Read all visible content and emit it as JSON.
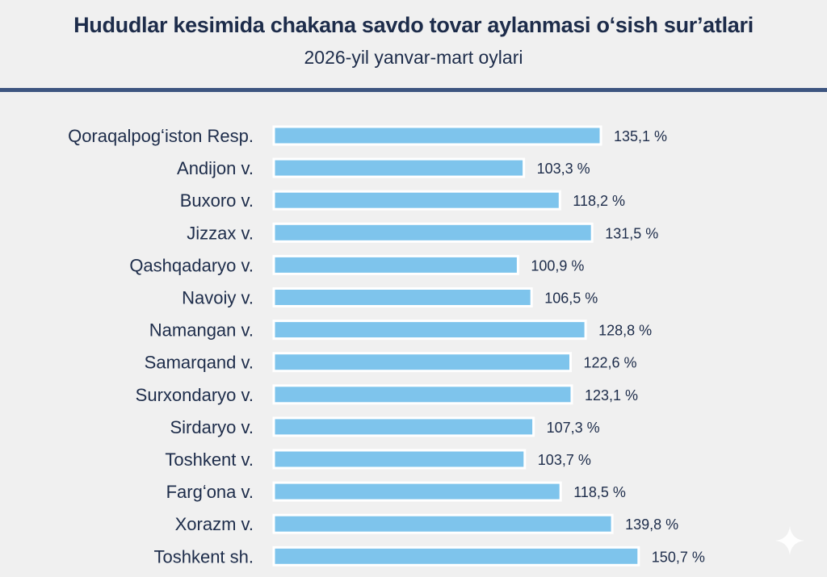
{
  "header": {
    "title": "Hududlar kesimida chakana savdo tovar aylanmasi oʻsish surʼatlari",
    "subtitle": "2026-yil yanvar-mart oylari"
  },
  "chart_data": {
    "type": "bar",
    "orientation": "horizontal",
    "title": "Hududlar kesimida chakana savdo tovar aylanmasi oʻsish surʼatlari",
    "subtitle": "2026-yil yanvar-mart oylari",
    "categories": [
      "Qoraqalpogʻiston Resp.",
      "Andijon v.",
      "Buxoro v.",
      "Jizzax v.",
      "Qashqadaryo v.",
      "Navoiy v.",
      "Namangan v.",
      "Samarqand v.",
      "Surxondaryo v.",
      "Sirdaryo v.",
      "Toshkent v.",
      "Fargʻona v.",
      "Xorazm v.",
      "Toshkent sh."
    ],
    "values": [
      135.1,
      103.3,
      118.2,
      131.5,
      100.9,
      106.5,
      128.8,
      122.6,
      123.1,
      107.3,
      103.7,
      118.5,
      139.8,
      150.7
    ],
    "value_labels": [
      "135,1 %",
      "103,3 %",
      "118,2 %",
      "131,5 %",
      "100,9 %",
      "106,5 %",
      "128,8 %",
      "122,6 %",
      "123,1 %",
      "107,3 %",
      "103,7 %",
      "118,5 %",
      "139,8 %",
      "150,7 %"
    ],
    "xlabel": "",
    "ylabel": "",
    "grid": false,
    "legend": "none",
    "colors": {
      "bar": "#7ec4ec",
      "text": "#1d2c4a",
      "divider": "#3d5580",
      "background": "#f0f0f0"
    }
  },
  "icons": {
    "corner": "sparkle-icon"
  }
}
